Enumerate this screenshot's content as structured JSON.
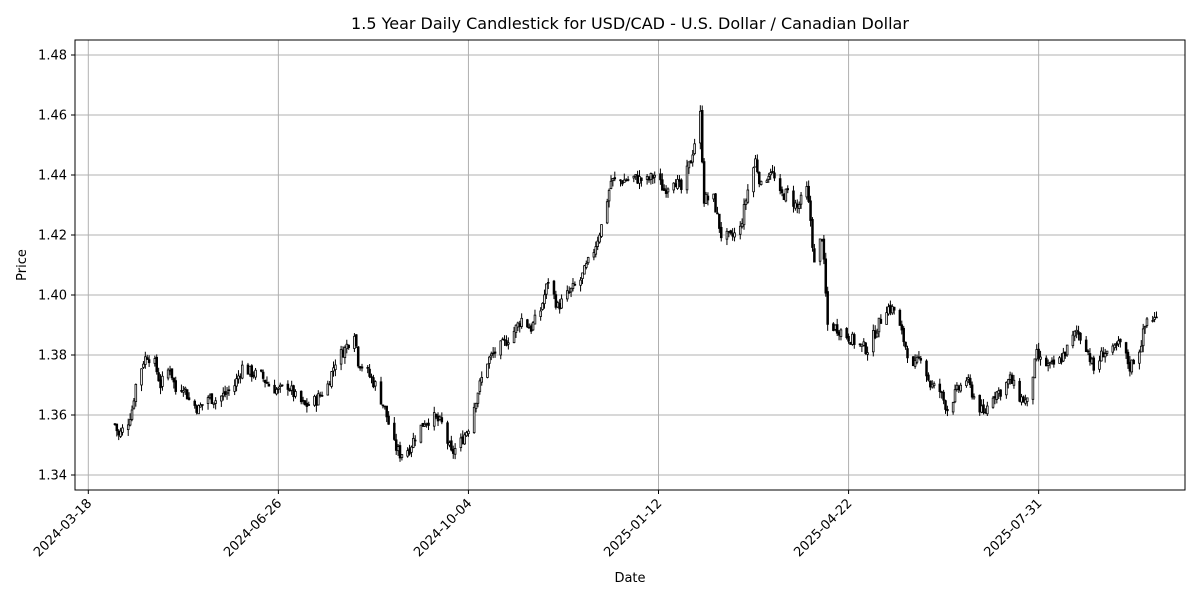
{
  "chart_data": {
    "type": "candlestick",
    "title": "1.5 Year Daily Candlestick for USD/CAD - U.S. Dollar / Canadian Dollar",
    "xlabel": "Date",
    "ylabel": "Price",
    "x_range": [
      "2024-03-11",
      "2025-10-16"
    ],
    "ylim": [
      1.335,
      1.485
    ],
    "x_ticks": [
      "2024-03-18",
      "2024-06-26",
      "2024-10-04",
      "2025-01-12",
      "2025-04-22",
      "2025-07-31"
    ],
    "y_ticks": [
      "1.34",
      "1.36",
      "1.38",
      "1.40",
      "1.42",
      "1.44",
      "1.46",
      "1.48"
    ],
    "grid": true,
    "colors": {
      "up": "#ffffff",
      "down": "#000000",
      "wick": "#000000",
      "grid": "#b0b0b0"
    },
    "anchors": [
      [
        "2024-04-01",
        1.357
      ],
      [
        "2024-04-03",
        1.353
      ],
      [
        "2024-04-08",
        1.358
      ],
      [
        "2024-04-10",
        1.362
      ],
      [
        "2024-04-12",
        1.37
      ],
      [
        "2024-04-16",
        1.378
      ],
      [
        "2024-04-18",
        1.38
      ],
      [
        "2024-04-22",
        1.377
      ],
      [
        "2024-04-25",
        1.37
      ],
      [
        "2024-04-30",
        1.376
      ],
      [
        "2024-05-03",
        1.368
      ],
      [
        "2024-05-07",
        1.37
      ],
      [
        "2024-05-10",
        1.365
      ],
      [
        "2024-05-15",
        1.362
      ],
      [
        "2024-05-20",
        1.366
      ],
      [
        "2024-05-24",
        1.365
      ],
      [
        "2024-05-29",
        1.367
      ],
      [
        "2024-06-03",
        1.37
      ],
      [
        "2024-06-07",
        1.376
      ],
      [
        "2024-06-12",
        1.374
      ],
      [
        "2024-06-17",
        1.373
      ],
      [
        "2024-06-21",
        1.37
      ],
      [
        "2024-06-26",
        1.368
      ],
      [
        "2024-07-01",
        1.37
      ],
      [
        "2024-07-05",
        1.366
      ],
      [
        "2024-07-10",
        1.363
      ],
      [
        "2024-07-16",
        1.365
      ],
      [
        "2024-07-22",
        1.37
      ],
      [
        "2024-07-26",
        1.378
      ],
      [
        "2024-07-31",
        1.382
      ],
      [
        "2024-08-05",
        1.388
      ],
      [
        "2024-08-07",
        1.378
      ],
      [
        "2024-08-12",
        1.374
      ],
      [
        "2024-08-16",
        1.37
      ],
      [
        "2024-08-21",
        1.362
      ],
      [
        "2024-08-26",
        1.35
      ],
      [
        "2024-08-29",
        1.347
      ],
      [
        "2024-09-03",
        1.349
      ],
      [
        "2024-09-06",
        1.353
      ],
      [
        "2024-09-11",
        1.358
      ],
      [
        "2024-09-16",
        1.359
      ],
      [
        "2024-09-20",
        1.357
      ],
      [
        "2024-09-25",
        1.347
      ],
      [
        "2024-09-30",
        1.351
      ],
      [
        "2024-10-04",
        1.356
      ],
      [
        "2024-10-09",
        1.368
      ],
      [
        "2024-10-14",
        1.378
      ],
      [
        "2024-10-18",
        1.381
      ],
      [
        "2024-10-23",
        1.384
      ],
      [
        "2024-10-28",
        1.388
      ],
      [
        "2024-11-01",
        1.392
      ],
      [
        "2024-11-06",
        1.389
      ],
      [
        "2024-11-11",
        1.395
      ],
      [
        "2024-11-15",
        1.405
      ],
      [
        "2024-11-20",
        1.396
      ],
      [
        "2024-11-25",
        1.4
      ],
      [
        "2024-12-02",
        1.405
      ],
      [
        "2024-12-09",
        1.415
      ],
      [
        "2024-12-13",
        1.423
      ],
      [
        "2024-12-18",
        1.438
      ],
      [
        "2024-12-23",
        1.438
      ],
      [
        "2024-12-30",
        1.439
      ],
      [
        "2025-01-06",
        1.438
      ],
      [
        "2025-01-10",
        1.44
      ],
      [
        "2025-01-15",
        1.435
      ],
      [
        "2025-01-20",
        1.439
      ],
      [
        "2025-01-24",
        1.435
      ],
      [
        "2025-01-29",
        1.445
      ],
      [
        "2025-02-03",
        1.46
      ],
      [
        "2025-02-05",
        1.432
      ],
      [
        "2025-02-10",
        1.432
      ],
      [
        "2025-02-14",
        1.42
      ],
      [
        "2025-02-19",
        1.419
      ],
      [
        "2025-02-24",
        1.422
      ],
      [
        "2025-02-28",
        1.435
      ],
      [
        "2025-03-04",
        1.445
      ],
      [
        "2025-03-07",
        1.436
      ],
      [
        "2025-03-12",
        1.442
      ],
      [
        "2025-03-17",
        1.433
      ],
      [
        "2025-03-21",
        1.434
      ],
      [
        "2025-03-26",
        1.429
      ],
      [
        "2025-03-31",
        1.435
      ],
      [
        "2025-04-02",
        1.425
      ],
      [
        "2025-04-04",
        1.41
      ],
      [
        "2025-04-08",
        1.42
      ],
      [
        "2025-04-11",
        1.39
      ],
      [
        "2025-04-16",
        1.389
      ],
      [
        "2025-04-22",
        1.386
      ],
      [
        "2025-04-28",
        1.383
      ],
      [
        "2025-05-02",
        1.382
      ],
      [
        "2025-05-07",
        1.389
      ],
      [
        "2025-05-12",
        1.396
      ],
      [
        "2025-05-16",
        1.395
      ],
      [
        "2025-05-21",
        1.385
      ],
      [
        "2025-05-26",
        1.375
      ],
      [
        "2025-05-30",
        1.38
      ],
      [
        "2025-06-04",
        1.37
      ],
      [
        "2025-06-09",
        1.368
      ],
      [
        "2025-06-13",
        1.362
      ],
      [
        "2025-06-18",
        1.368
      ],
      [
        "2025-06-23",
        1.372
      ],
      [
        "2025-06-27",
        1.366
      ],
      [
        "2025-07-02",
        1.36
      ],
      [
        "2025-07-07",
        1.367
      ],
      [
        "2025-07-11",
        1.368
      ],
      [
        "2025-07-16",
        1.372
      ],
      [
        "2025-07-21",
        1.366
      ],
      [
        "2025-07-25",
        1.364
      ],
      [
        "2025-07-30",
        1.38
      ],
      [
        "2025-08-01",
        1.378
      ],
      [
        "2025-08-06",
        1.376
      ],
      [
        "2025-08-11",
        1.378
      ],
      [
        "2025-08-15",
        1.382
      ],
      [
        "2025-08-20",
        1.388
      ],
      [
        "2025-08-25",
        1.383
      ],
      [
        "2025-08-29",
        1.375
      ],
      [
        "2025-09-03",
        1.381
      ],
      [
        "2025-09-08",
        1.381
      ],
      [
        "2025-09-12",
        1.384
      ],
      [
        "2025-09-17",
        1.376
      ],
      [
        "2025-09-22",
        1.382
      ],
      [
        "2025-09-26",
        1.392
      ],
      [
        "2025-10-01",
        1.392
      ]
    ]
  }
}
